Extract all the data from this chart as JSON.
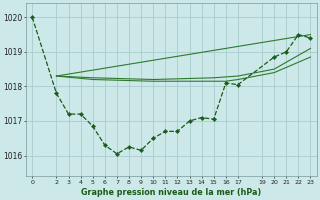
{
  "background_color": "#cce8e8",
  "grid_color": "#aacccc",
  "line_color_main": "#1a5c1a",
  "line_color_thin": "#2d7a2d",
  "title": "Graphe pression niveau de la mer (hPa)",
  "ylabel_values": [
    1016,
    1017,
    1018,
    1019,
    1020
  ],
  "xlim": [
    -0.5,
    23.5
  ],
  "ylim": [
    1015.4,
    1020.4
  ],
  "xtick_positions": [
    0,
    2,
    3,
    4,
    5,
    6,
    7,
    8,
    9,
    10,
    11,
    12,
    13,
    14,
    15,
    16,
    17,
    19,
    20,
    21,
    22,
    23
  ],
  "xtick_labels": [
    "0",
    "2",
    "3",
    "4",
    "5",
    "6",
    "7",
    "8",
    "9",
    "10",
    "11",
    "12",
    "13",
    "14",
    "15",
    "16",
    "17",
    "19",
    "20",
    "21",
    "22",
    "23"
  ],
  "series1_x": [
    0,
    2,
    3,
    4,
    5,
    6,
    7,
    8,
    9,
    10,
    11,
    12,
    13,
    14,
    15,
    16,
    17,
    20,
    21,
    22,
    23
  ],
  "series1_y": [
    1020.0,
    1017.8,
    1017.2,
    1017.2,
    1016.85,
    1016.3,
    1016.05,
    1016.25,
    1016.15,
    1016.5,
    1016.7,
    1016.7,
    1017.0,
    1017.1,
    1017.05,
    1018.1,
    1018.05,
    1018.85,
    1019.0,
    1019.5,
    1019.4
  ],
  "series2_x": [
    2,
    23
  ],
  "series2_y": [
    1018.3,
    1019.5
  ],
  "series3_x": [
    2,
    5,
    10,
    15,
    17,
    20,
    23
  ],
  "series3_y": [
    1018.3,
    1018.25,
    1018.2,
    1018.25,
    1018.3,
    1018.5,
    1019.1
  ],
  "series4_x": [
    2,
    5,
    10,
    16,
    17,
    20,
    23
  ],
  "series4_y": [
    1018.3,
    1018.2,
    1018.15,
    1018.15,
    1018.2,
    1018.4,
    1018.85
  ]
}
